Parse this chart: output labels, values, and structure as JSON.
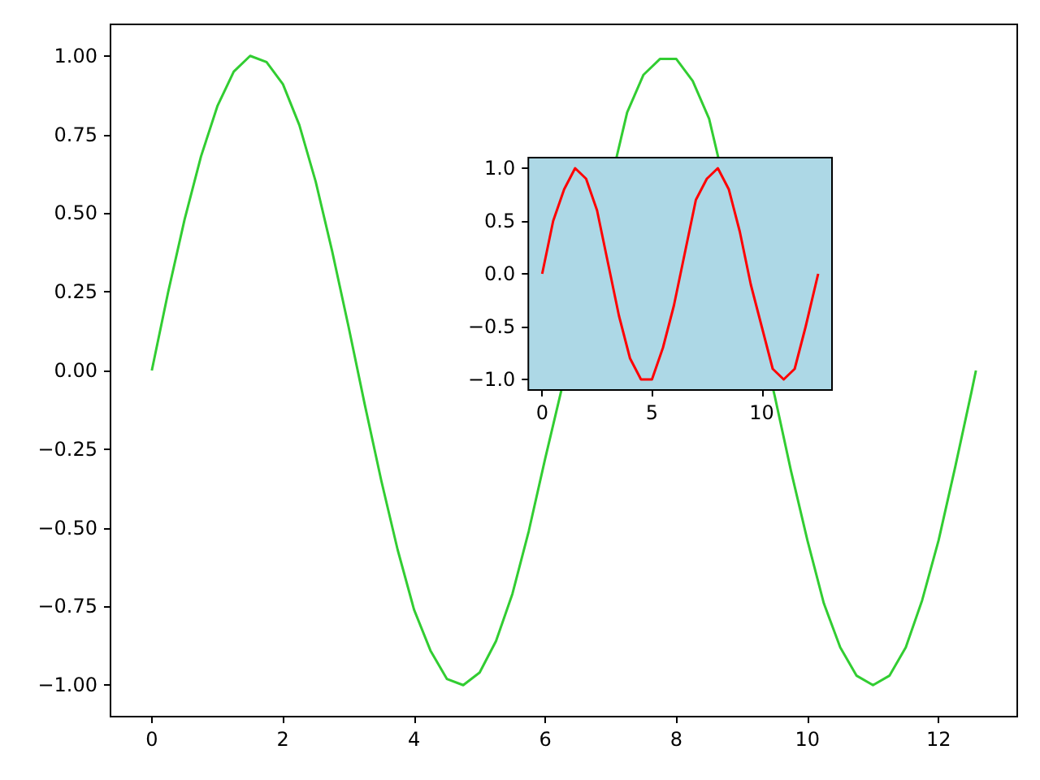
{
  "chart_data": [
    {
      "type": "line",
      "x": [
        0,
        0.25,
        0.5,
        0.75,
        1,
        1.25,
        1.5,
        1.75,
        2,
        2.25,
        2.5,
        2.75,
        3,
        3.25,
        3.5,
        3.75,
        4,
        4.25,
        4.5,
        4.75,
        5,
        5.25,
        5.5,
        5.75,
        6,
        6.25,
        6.5,
        6.75,
        7,
        7.25,
        7.5,
        7.75,
        8,
        8.25,
        8.5,
        8.75,
        9,
        9.25,
        9.5,
        9.75,
        10,
        10.25,
        10.5,
        10.75,
        11,
        11.25,
        11.5,
        11.75,
        12,
        12.25,
        12.5,
        12.57
      ],
      "series": [
        {
          "color": "#32cd32",
          "values": [
            0,
            0.25,
            0.48,
            0.68,
            0.84,
            0.95,
            1.0,
            0.98,
            0.91,
            0.78,
            0.6,
            0.38,
            0.14,
            -0.11,
            -0.35,
            -0.57,
            -0.76,
            -0.89,
            -0.98,
            -1.0,
            -0.96,
            -0.86,
            -0.71,
            -0.51,
            -0.28,
            null,
            null,
            null,
            null,
            0.82,
            0.94,
            0.99,
            0.99,
            0.92,
            0.8,
            null,
            null,
            null,
            -0.08,
            -0.32,
            -0.54,
            -0.74,
            -0.88,
            -0.97,
            -1.0,
            -0.97,
            -0.88,
            -0.73,
            -0.54,
            -0.31,
            -0.07,
            0.0
          ]
        }
      ],
      "xlim": [
        -0.63,
        13.2
      ],
      "ylim": [
        -1.1,
        1.1
      ],
      "xticks": [
        0,
        2,
        4,
        6,
        8,
        10,
        12
      ],
      "yticks": [
        {
          "value": -1,
          "label": "−1.00"
        },
        {
          "value": -0.75,
          "label": "−0.75"
        },
        {
          "value": -0.5,
          "label": "−0.50"
        },
        {
          "value": -0.25,
          "label": "−0.25"
        },
        {
          "value": 0,
          "label": "0.00"
        },
        {
          "value": 0.25,
          "label": "0.25"
        },
        {
          "value": 0.5,
          "label": "0.50"
        },
        {
          "value": 0.75,
          "label": "0.75"
        },
        {
          "value": 1,
          "label": "1.00"
        }
      ],
      "marker": "none",
      "line_style": "solid"
    },
    {
      "type": "line",
      "x": [
        0,
        0.5,
        1,
        1.5,
        2,
        2.5,
        3,
        3.5,
        4,
        4.5,
        5,
        5.5,
        6,
        6.5,
        7,
        7.5,
        8,
        8.5,
        9,
        9.5,
        10,
        10.5,
        11,
        11.5,
        12,
        12.57
      ],
      "series": [
        {
          "color": "#ff0000",
          "values": [
            0,
            0.5,
            0.8,
            1.0,
            0.9,
            0.6,
            0.1,
            -0.4,
            -0.8,
            -1.0,
            -1.0,
            -0.7,
            -0.3,
            0.2,
            0.7,
            0.9,
            1.0,
            0.8,
            0.4,
            -0.1,
            -0.5,
            -0.9,
            -1.0,
            -0.9,
            -0.5,
            0.0
          ]
        }
      ],
      "xlim": [
        -0.63,
        13.2
      ],
      "ylim": [
        -1.1,
        1.1
      ],
      "xticks": [
        0,
        5,
        10
      ],
      "yticks": [
        {
          "value": -1,
          "label": "−1.0"
        },
        {
          "value": -0.5,
          "label": "−0.5"
        },
        {
          "value": 0,
          "label": "0.0"
        },
        {
          "value": 0.5,
          "label": "0.5"
        },
        {
          "value": 1,
          "label": "1.0"
        }
      ],
      "marker": "none",
      "line_style": "solid"
    }
  ]
}
